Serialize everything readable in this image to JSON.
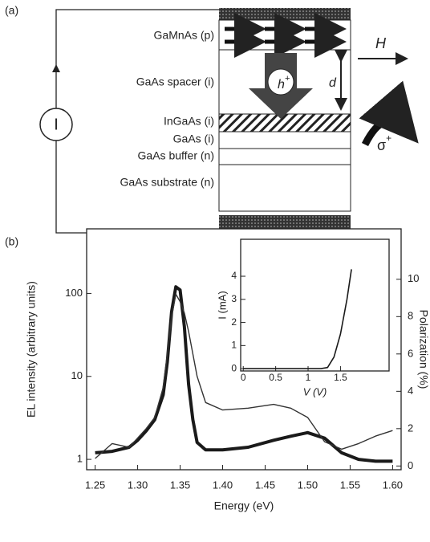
{
  "diagram": {
    "panel_label": "(a)",
    "layers": [
      "GaMnAs (p)",
      "GaAs spacer (i)",
      "InGaAs (i)",
      "GaAs (i)",
      "GaAs buffer (n)",
      "GaAs substrate (n)"
    ],
    "current_source": "I",
    "field": "H",
    "distance": "d",
    "hole": {
      "base": "h",
      "sup": "+"
    },
    "light": {
      "base": "σ",
      "sup": "+"
    }
  },
  "panel_b_label": "(b)",
  "chart_data": [
    {
      "type": "line",
      "xlabel": "Energy (eV)",
      "ylabel": "EL intensity (arbitrary units)",
      "y2label": "Polarization (%)",
      "x": [
        1.25,
        1.27,
        1.29,
        1.3,
        1.31,
        1.32,
        1.33,
        1.335,
        1.34,
        1.345,
        1.35,
        1.355,
        1.36,
        1.365,
        1.37,
        1.38,
        1.4,
        1.43,
        1.46,
        1.48,
        1.5,
        1.52,
        1.54,
        1.56,
        1.58,
        1.6
      ],
      "series": [
        {
          "color": "#1a1a1a",
          "linewidth": 4,
          "values": [
            1.2,
            1.25,
            1.4,
            1.7,
            2.2,
            3,
            6,
            15,
            60,
            120,
            110,
            40,
            8,
            3,
            1.6,
            1.3,
            1.3,
            1.4,
            1.7,
            1.9,
            2.1,
            1.8,
            1.2,
            1.0,
            0.95,
            0.95
          ]
        },
        {
          "color": "#333333",
          "linewidth": 1.4,
          "axis": "y2",
          "values": [
            0.4,
            1.2,
            1.0,
            1.5,
            2.0,
            2.6,
            4.2,
            6,
            8,
            9.2,
            8.8,
            8.2,
            7.2,
            6,
            4.8,
            3.4,
            3.0,
            3.1,
            3.3,
            3.1,
            2.6,
            1.3,
            0.9,
            1.2,
            1.6,
            1.9
          ]
        }
      ],
      "xlim": [
        1.24,
        1.61
      ],
      "xticks": [
        1.25,
        {
          "value": 1.3,
          "label": "1.30"
        },
        1.35,
        {
          "value": 1.4,
          "label": "1.40"
        },
        1.45,
        {
          "value": 1.5,
          "label": "1.50"
        },
        1.55,
        {
          "value": 1.6,
          "label": "1.60"
        }
      ],
      "yscale": "log",
      "ylim": [
        0.75,
        600
      ],
      "yticks": [
        1,
        10,
        100
      ],
      "y2lim": [
        -0.2,
        12.7
      ],
      "y2ticks": [
        0,
        2,
        4,
        6,
        8,
        10
      ]
    },
    {
      "type": "line",
      "xlabel": "V (V)",
      "ylabel": "I (mA)",
      "x": [
        0,
        0.4,
        0.8,
        1.2,
        1.3,
        1.4,
        1.5,
        1.6,
        1.67
      ],
      "series": [
        {
          "color": "#1a1a1a",
          "linewidth": 1.6,
          "values": [
            0,
            0,
            0,
            0,
            0.05,
            0.5,
            1.5,
            3,
            4.3
          ]
        }
      ],
      "xlim": [
        -0.04,
        2.25
      ],
      "xticks": [
        0,
        0.5,
        1,
        1.5
      ],
      "ylim": [
        -0.1,
        5.6
      ],
      "yticks": [
        0,
        1,
        2,
        3,
        4
      ]
    }
  ]
}
